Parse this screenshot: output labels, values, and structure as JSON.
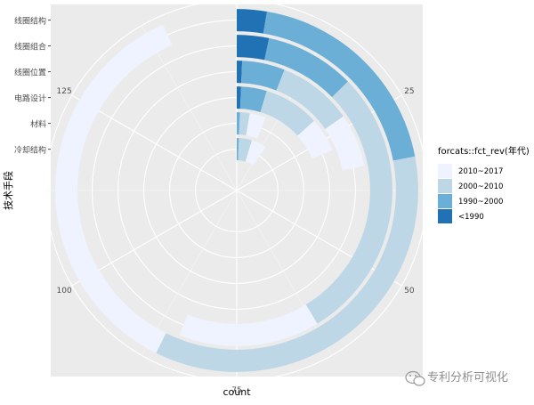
{
  "chart_data": {
    "type": "bar",
    "coord": "polar",
    "position": "stack",
    "title": "",
    "xlabel": "技术手段",
    "ylabel": "count",
    "ylim": [
      0,
      150
    ],
    "radial_ticks": [
      0,
      25,
      50,
      75,
      100,
      125
    ],
    "categories": [
      "线圈结构",
      "线圈组合",
      "线圈位置",
      "电路设计",
      "材料",
      "冷却结构"
    ],
    "legend": {
      "title": "forcats::fct_rev(年代)",
      "position": "right",
      "entries": [
        "2010~2017",
        "2000~2010",
        "1990~2000",
        "<1990"
      ]
    },
    "series": [
      {
        "name": "<1990",
        "color": "#2171b5",
        "values": [
          4,
          5,
          1,
          1,
          0,
          0
        ]
      },
      {
        "name": "1990~2000",
        "color": "#6baed6",
        "values": [
          29,
          14,
          8,
          6,
          1,
          1
        ]
      },
      {
        "name": "2000~2010",
        "color": "#bdd7e7",
        "values": [
          53,
          43,
          14,
          13,
          3,
          6
        ]
      },
      {
        "name": "2010~2017",
        "color": "#eff3ff",
        "values": [
          54,
          22,
          10,
          8,
          5,
          7
        ]
      }
    ],
    "grid": true,
    "panel_color": "#ebebeb"
  },
  "watermark": {
    "text": "专利分析可视化"
  }
}
